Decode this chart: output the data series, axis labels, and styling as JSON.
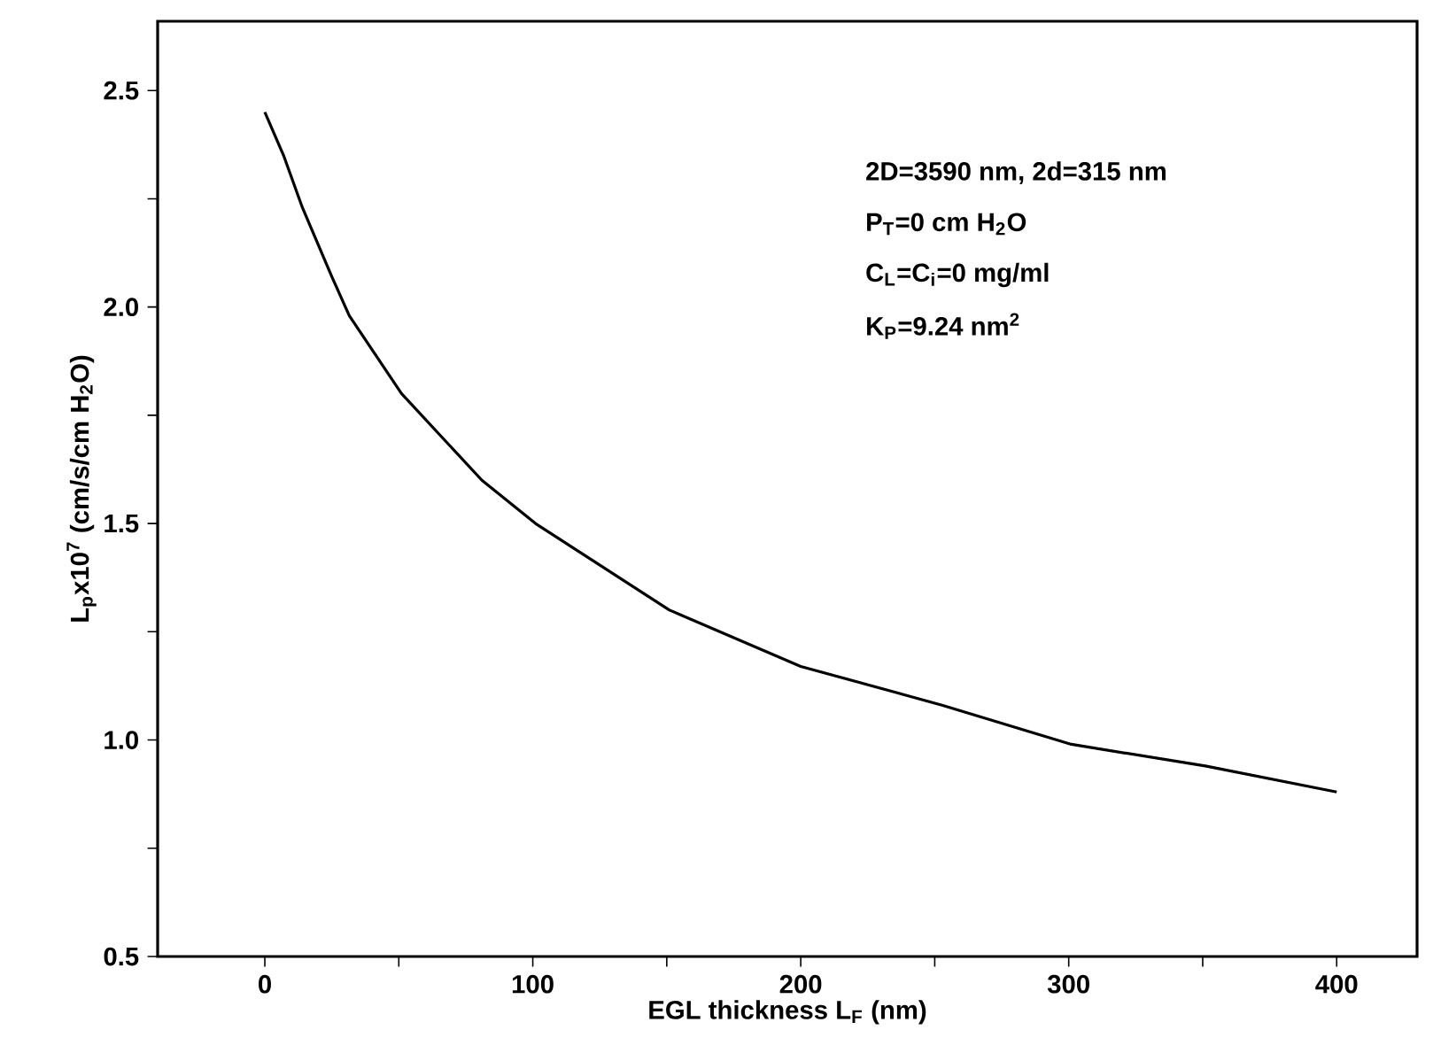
{
  "chart_data": {
    "type": "line",
    "xlabel": "EGL thickness L$_{F}$ (nm)",
    "ylabel": "L$_{p}$x10$^{7}$ (cm/s/cm H$_{2}$O)",
    "annotations": [
      "2D=3590 nm, 2d=315 nm",
      "P$_{T}$=0 cm H$_{2}$O",
      "C$_{L}$=C$_{i}$=0 mg/ml",
      "K$_{P}$=9.24 nm$^{2}$"
    ],
    "series": [
      {
        "color": "#000000",
        "x": [
          0,
          7,
          14,
          25,
          31.5,
          51,
          81,
          101,
          151,
          200,
          253,
          301,
          351,
          400
        ],
        "values": [
          2.45,
          2.35,
          2.23,
          2.07,
          1.98,
          1.8,
          1.6,
          1.5,
          1.3,
          1.17,
          1.08,
          0.99,
          0.94,
          0.88
        ]
      }
    ],
    "xlim": [
      -40,
      430
    ],
    "ylim": [
      0.5,
      2.66
    ],
    "xticks": [
      0,
      {
        "value": 50,
        "label": null
      },
      100,
      {
        "value": 150,
        "label": null
      },
      200,
      {
        "value": 250,
        "label": null
      },
      300,
      {
        "value": 350,
        "label": null
      },
      400
    ],
    "yticks": [
      0.5,
      {
        "value": 0.75,
        "label": null
      },
      {
        "value": 1,
        "label": "1.0"
      },
      {
        "value": 1.25,
        "label": null
      },
      1.5,
      {
        "value": 1.75,
        "label": null
      },
      {
        "value": 2,
        "label": "2.0"
      },
      {
        "value": 2.25,
        "label": null
      },
      2.5
    ],
    "marker": "none",
    "line_style": "solid"
  }
}
